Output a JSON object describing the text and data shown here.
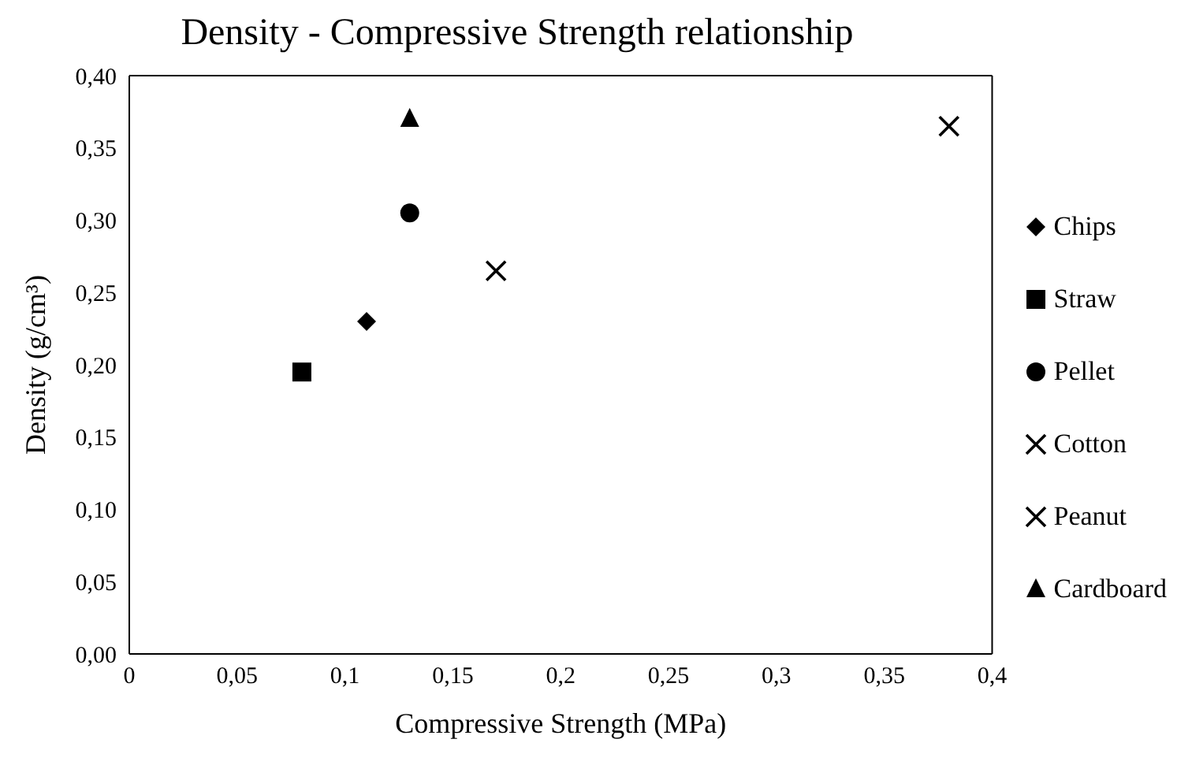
{
  "chart_data": {
    "type": "scatter",
    "title": "Density - Compressive Strength relationship",
    "xlabel": "Compressive Strength (MPa)",
    "ylabel": "Density (g/cm³)",
    "xlim": [
      0,
      0.4
    ],
    "ylim": [
      0,
      0.4
    ],
    "xticks": [
      0,
      {
        "value": 0.05,
        "label": "0,05"
      },
      {
        "value": 0.1,
        "label": "0,1"
      },
      {
        "value": 0.15,
        "label": "0,15"
      },
      {
        "value": 0.2,
        "label": "0,2"
      },
      {
        "value": 0.25,
        "label": "0,25"
      },
      {
        "value": 0.3,
        "label": "0,3"
      },
      {
        "value": 0.35,
        "label": "0,35"
      },
      {
        "value": 0.4,
        "label": "0,4"
      }
    ],
    "yticks": [
      {
        "value": 0,
        "label": "0,00"
      },
      {
        "value": 0.05,
        "label": "0,05"
      },
      {
        "value": 0.1,
        "label": "0,10"
      },
      {
        "value": 0.15,
        "label": "0,15"
      },
      {
        "value": 0.2,
        "label": "0,20"
      },
      {
        "value": 0.25,
        "label": "0,25"
      },
      {
        "value": 0.3,
        "label": "0,30"
      },
      {
        "value": 0.35,
        "label": "0,35"
      },
      {
        "value": 0.4,
        "label": "0,40"
      }
    ],
    "grid": false,
    "legend": "right",
    "series": [
      {
        "name": "Chips",
        "color": "#000000",
        "marker": "diamond",
        "x": [
          0.11
        ],
        "values": [
          0.23
        ]
      },
      {
        "name": "Straw",
        "color": "#000000",
        "marker": "square",
        "x": [
          0.08
        ],
        "values": [
          0.195
        ]
      },
      {
        "name": "Pellet",
        "color": "#000000",
        "marker": "circle",
        "x": [
          0.13
        ],
        "values": [
          0.305
        ]
      },
      {
        "name": "Cotton",
        "color": "#000000",
        "marker": "cross",
        "x": [
          0.38
        ],
        "values": [
          0.365
        ]
      },
      {
        "name": "Peanut",
        "color": "#000000",
        "marker": "cross",
        "x": [
          0.17
        ],
        "values": [
          0.265
        ]
      },
      {
        "name": "Cardboard",
        "color": "#000000",
        "marker": "triangle",
        "x": [
          0.13
        ],
        "values": [
          0.37
        ]
      }
    ]
  }
}
